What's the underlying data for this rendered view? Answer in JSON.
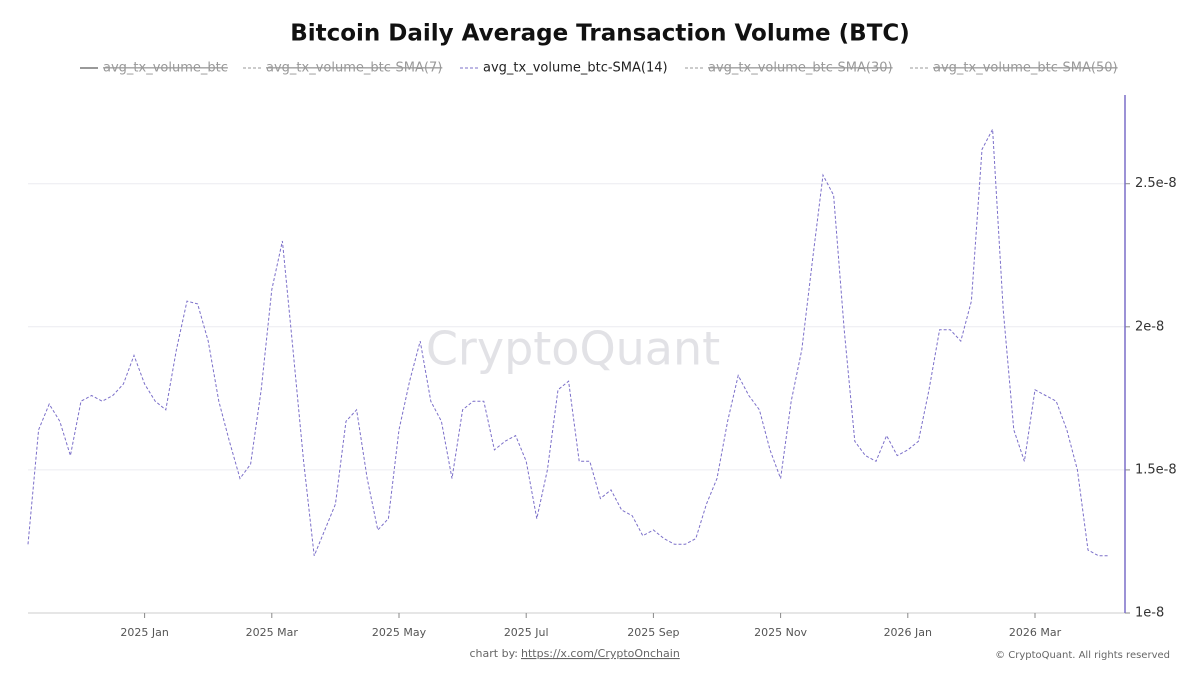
{
  "chart_data": {
    "type": "line",
    "title": "Bitcoin Daily Average Transaction Volume (BTC)",
    "watermark": "CryptoQuant",
    "credit_prefix": "chart by:",
    "credit_link": "https://x.com/CryptoOnchain",
    "copyright": "© CryptoQuant. All rights reserved",
    "categories": [
      null,
      null,
      null,
      null,
      null,
      null,
      null,
      null,
      null,
      null,
      null,
      "2025 Jan",
      null,
      null,
      null,
      null,
      null,
      null,
      null,
      null,
      null,
      null,
      null,
      "2025 Mar",
      null,
      null,
      null,
      null,
      null,
      null,
      null,
      null,
      null,
      null,
      null,
      "2025 May",
      null,
      null,
      null,
      null,
      null,
      null,
      null,
      null,
      null,
      null,
      null,
      "2025 Jul",
      null,
      null,
      null,
      null,
      null,
      null,
      null,
      null,
      null,
      null,
      null,
      "2025 Sep",
      null,
      null,
      null,
      null,
      null,
      null,
      null,
      null,
      null,
      null,
      null,
      "2025 Nov",
      null,
      null,
      null,
      null,
      null,
      null,
      null,
      null,
      null,
      null,
      null,
      "2026 Jan",
      null,
      null,
      null,
      null,
      null,
      null,
      null,
      null,
      null,
      null,
      null,
      "2026 Mar",
      null,
      null,
      null,
      null,
      null,
      null,
      null
    ],
    "series": [
      {
        "name": "avg_tx_volume_btc",
        "color": "#555555",
        "visible": false
      },
      {
        "name": "avg_tx_volume_btc-SMA(7)",
        "color": "#9a9a9a",
        "visible": false
      },
      {
        "name": "avg_tx_volume_btc-SMA(14)",
        "color": "#7b6fc9",
        "visible": true,
        "values": [
          1.24e-08,
          1.64e-08,
          1.73e-08,
          1.67e-08,
          1.55e-08,
          1.74e-08,
          1.76e-08,
          1.74e-08,
          1.76e-08,
          1.8e-08,
          1.9e-08,
          1.8e-08,
          1.74e-08,
          1.71e-08,
          1.92e-08,
          2.09e-08,
          2.08e-08,
          1.95e-08,
          1.74e-08,
          1.6e-08,
          1.47e-08,
          1.52e-08,
          1.78e-08,
          2.13e-08,
          2.3e-08,
          1.92e-08,
          1.53e-08,
          1.2e-08,
          1.29e-08,
          1.38e-08,
          1.67e-08,
          1.71e-08,
          1.47e-08,
          1.29e-08,
          1.33e-08,
          1.64e-08,
          1.81e-08,
          1.95e-08,
          1.74e-08,
          1.67e-08,
          1.47e-08,
          1.71e-08,
          1.74e-08,
          1.74e-08,
          1.57e-08,
          1.6e-08,
          1.62e-08,
          1.53e-08,
          1.33e-08,
          1.5e-08,
          1.78e-08,
          1.81e-08,
          1.53e-08,
          1.53e-08,
          1.4e-08,
          1.43e-08,
          1.36e-08,
          1.34e-08,
          1.27e-08,
          1.29e-08,
          1.26e-08,
          1.24e-08,
          1.24e-08,
          1.26e-08,
          1.38e-08,
          1.47e-08,
          1.67e-08,
          1.83e-08,
          1.76e-08,
          1.71e-08,
          1.57e-08,
          1.47e-08,
          1.74e-08,
          1.92e-08,
          2.23e-08,
          2.53e-08,
          2.46e-08,
          1.99e-08,
          1.6e-08,
          1.55e-08,
          1.53e-08,
          1.62e-08,
          1.55e-08,
          1.57e-08,
          1.6e-08,
          1.78e-08,
          1.99e-08,
          1.99e-08,
          1.95e-08,
          2.09e-08,
          2.62e-08,
          2.69e-08,
          2.06e-08,
          1.64e-08,
          1.53e-08,
          1.78e-08,
          1.76e-08,
          1.74e-08,
          1.64e-08,
          1.5e-08,
          1.22e-08,
          1.2e-08,
          1.2e-08
        ]
      },
      {
        "name": "avg_tx_volume_btc-SMA(30)",
        "color": "#9a9a9a",
        "visible": false
      },
      {
        "name": "avg_tx_volume_btc-SMA(50)",
        "color": "#9a9a9a",
        "visible": false
      }
    ],
    "ylim": [
      1e-08,
      2.81e-08
    ],
    "yticks": [
      1e-08,
      1.5e-08,
      2e-08,
      2.5e-08
    ],
    "grid": true
  }
}
